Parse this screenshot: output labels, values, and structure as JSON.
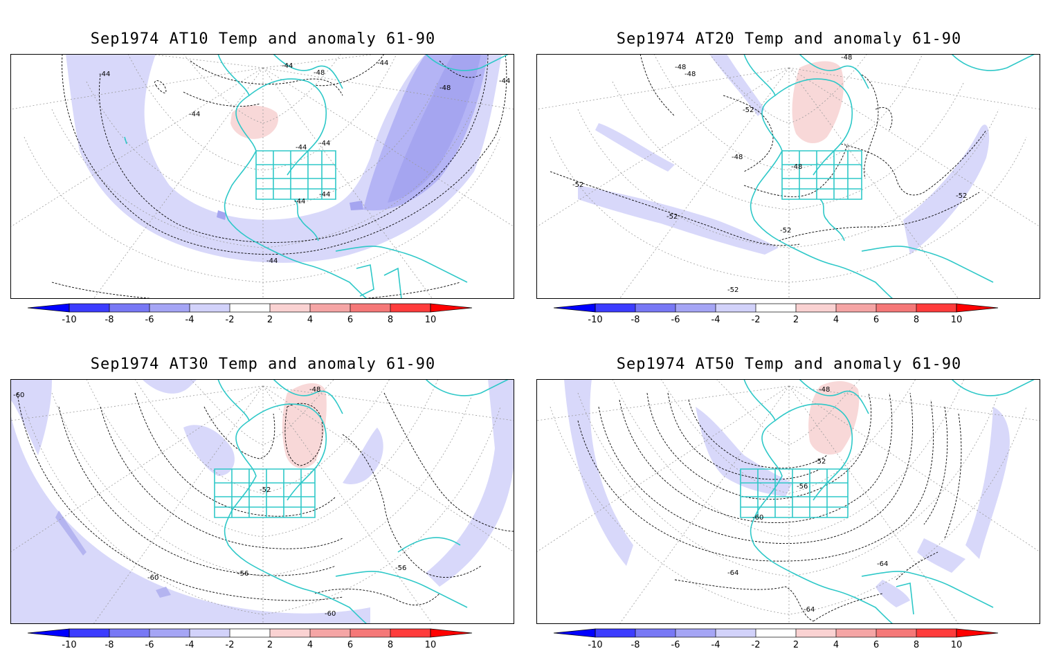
{
  "panels": [
    {
      "id": "at10",
      "title": "Sep1974 AT10 Temp and anomaly 61-90",
      "contour_labels": [
        "-44",
        "-44",
        "-48",
        "-44",
        "-48",
        "-44",
        "-44",
        "-44",
        "-44",
        "-44",
        "-44",
        "-44"
      ],
      "negative_regions": [
        "-2..-4",
        "-4..-6",
        "-6..-8"
      ],
      "positive_regions": [
        "2..4"
      ]
    },
    {
      "id": "at20",
      "title": "Sep1974 AT20 Temp and anomaly 61-90",
      "contour_labels": [
        "-48",
        "-48",
        "-48",
        "-52",
        "-48",
        "-48",
        "-52",
        "-52",
        "-52",
        "-52",
        "-52"
      ],
      "negative_regions": [
        "-2..-4"
      ],
      "positive_regions": [
        "2..4"
      ]
    },
    {
      "id": "at30",
      "title": "Sep1974 AT30 Temp and anomaly 61-90",
      "contour_labels": [
        "-60",
        "-48",
        "-52",
        "-60",
        "-56",
        "-56",
        "-60"
      ],
      "negative_regions": [
        "-2..-4",
        "-4..-6"
      ],
      "positive_regions": [
        "2..4"
      ]
    },
    {
      "id": "at50",
      "title": "Sep1974 AT50 Temp and anomaly 61-90",
      "contour_labels": [
        "-48",
        "-52",
        "-56",
        "-60",
        "-64",
        "-64",
        "-64"
      ],
      "negative_regions": [
        "-2..-4"
      ],
      "positive_regions": [
        "2..4"
      ]
    }
  ],
  "colorbar": {
    "tick_labels": [
      "-10",
      "-8",
      "-6",
      "-4",
      "-2",
      "2",
      "4",
      "6",
      "8",
      "10"
    ],
    "colors": [
      "#0000ff",
      "#3c3cff",
      "#7878f5",
      "#a5a5f5",
      "#d2d2fa",
      "#ffffff",
      "#fad2d2",
      "#f5a5a5",
      "#f57878",
      "#ff3c3c",
      "#ff0000"
    ]
  },
  "colors": {
    "coast": "#2ec8c8",
    "contour": "#000000",
    "graticule": "#9a9a9a",
    "neg_light": "#d8d8fa",
    "neg_mid": "#b4b4f5",
    "neg_dark": "#9c9cf0",
    "pos_light": "#f8d8d8"
  }
}
